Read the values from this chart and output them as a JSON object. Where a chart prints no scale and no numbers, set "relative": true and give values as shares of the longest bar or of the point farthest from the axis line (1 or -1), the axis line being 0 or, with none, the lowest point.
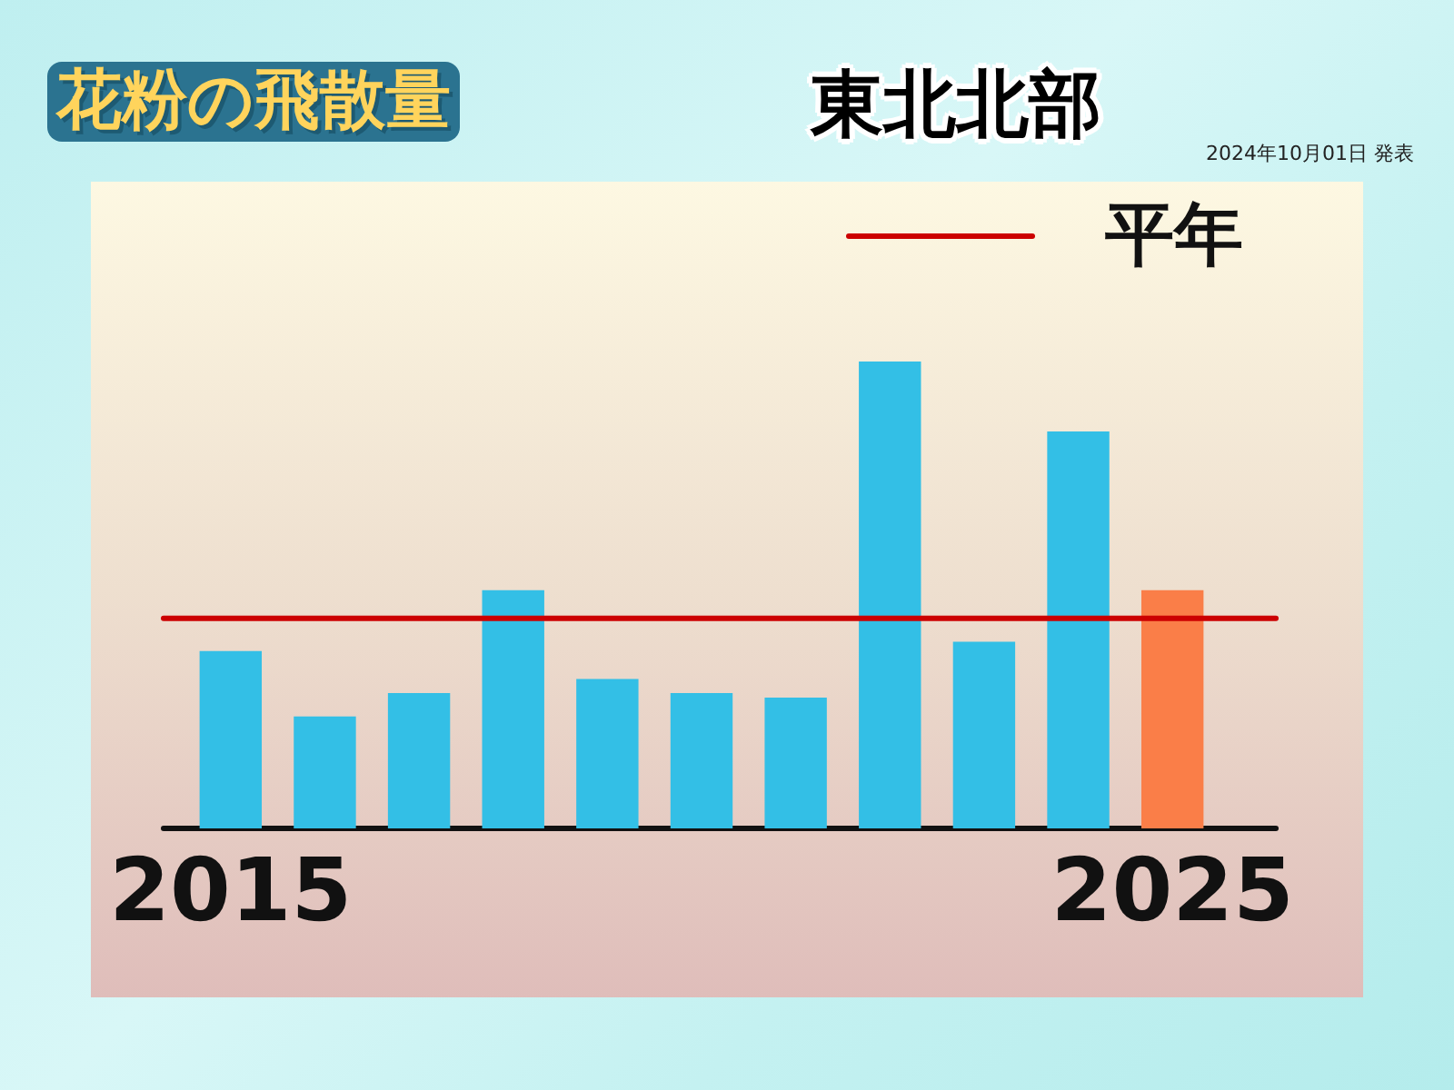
{
  "chart_data": {
    "type": "bar",
    "title": "花粉の飛散量",
    "subtitle": "東北北部",
    "categories": [
      "2015",
      null,
      null,
      null,
      null,
      null,
      null,
      null,
      null,
      null,
      "2025"
    ],
    "values": [
      0.38,
      0.24,
      0.29,
      0.51,
      0.32,
      0.29,
      0.28,
      1,
      0.4,
      0.85,
      0.51
    ],
    "colors": [
      "#33bfe6",
      "#33bfe6",
      "#33bfe6",
      "#33bfe6",
      "#33bfe6",
      "#33bfe6",
      "#33bfe6",
      "#33bfe6",
      "#33bfe6",
      "#33bfe6",
      "#fa7e48"
    ],
    "relative": true,
    "ref_lines": [
      {
        "axis": "y",
        "value": 0.45,
        "label": "平年",
        "color": "#cc0000"
      }
    ],
    "annotations": [
      "2024年10月01日 発表"
    ]
  }
}
